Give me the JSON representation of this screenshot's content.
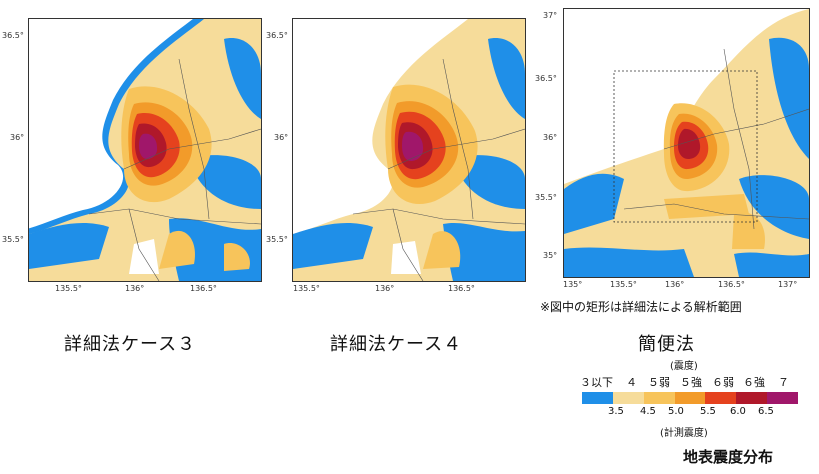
{
  "maps": [
    {
      "id": "case3",
      "caption": "詳細法ケース３",
      "y_ticks": [
        "36.5°",
        "36°",
        "35.5°"
      ],
      "x_ticks": [
        "135.5°",
        "136°",
        "136.5°"
      ]
    },
    {
      "id": "case4",
      "caption": "詳細法ケース４",
      "y_ticks": [
        "36.5°",
        "36°",
        "35.5°"
      ],
      "x_ticks": [
        "135.5°",
        "136°",
        "136.5°"
      ]
    },
    {
      "id": "simple",
      "caption": "簡便法",
      "y_ticks": [
        "37°",
        "36.5°",
        "36°",
        "35.5°",
        "35°"
      ],
      "x_ticks": [
        "135°",
        "135.5°",
        "136°",
        "136.5°",
        "137°"
      ]
    }
  ],
  "note": "※図中の矩形は詳細法による解析範囲",
  "legend": {
    "intensity_title": "(震度)",
    "classes": [
      "３以下",
      "４",
      "５弱",
      "５強",
      "６弱",
      "６強",
      "７"
    ],
    "colors": [
      "#1f8fe8",
      "#f6dc9a",
      "#f7c45b",
      "#f29b2a",
      "#e5421e",
      "#b0182a",
      "#a0176a"
    ],
    "values": [
      "3.5",
      "4.5",
      "5.0",
      "5.5",
      "6.0",
      "6.5"
    ],
    "instrument_title": "(計測震度)"
  },
  "footer_title": "地表震度分布"
}
